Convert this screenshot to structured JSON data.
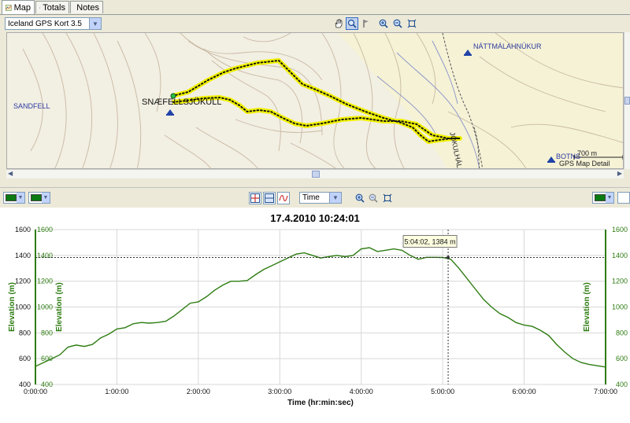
{
  "tabs": [
    {
      "label": "Map",
      "icon": "map-icon",
      "active": true
    },
    {
      "label": "Totals",
      "icon": "table-icon",
      "active": false
    },
    {
      "label": "Notes",
      "icon": "notes-icon",
      "active": false
    }
  ],
  "map_toolbar": {
    "map_select": "Iceland GPS Kort 3.5",
    "tools": [
      "hand-icon",
      "zoom-select-icon",
      "flag-icon",
      "zoom-in-icon",
      "zoom-out-icon",
      "zoom-fit-icon"
    ]
  },
  "map": {
    "labels": {
      "sandfell": "SANDFELL",
      "snaefellsjokull": "SNÆFELLSJÖKULL",
      "nattmalahnukur": "NÁTTMÁLAHNÚKUR",
      "botns": "BOTNS",
      "jokulhalsleid": "JÖKULHÁLSLEIÐ"
    },
    "scale": "700 m",
    "credit": "GPS Map Detail",
    "track_color": "#f0f000"
  },
  "chart_toolbar": {
    "left_color": "#0a7a12",
    "right_color": "#0a7a12",
    "x_select": "Time"
  },
  "chart_data": {
    "type": "line",
    "title": "17.4.2010 10:24:01",
    "xlabel": "Time (hr:min:sec)",
    "ylabel": "Elevation (m)",
    "xlim": [
      0,
      7
    ],
    "ylim": [
      400,
      1600
    ],
    "x_ticks": [
      "0:00:00",
      "1:00:00",
      "2:00:00",
      "3:00:00",
      "4:00:00",
      "5:00:00",
      "6:00:00",
      "7:00:00"
    ],
    "y_ticks": [
      "400",
      "600",
      "800",
      "1000",
      "1200",
      "1400",
      "1600"
    ],
    "series_color": "#2e7d12",
    "cursor": {
      "x": 5.067,
      "y": 1384,
      "label": "5:04:02, 1384 m"
    },
    "x": [
      0,
      0.1,
      0.2,
      0.3,
      0.4,
      0.5,
      0.6,
      0.7,
      0.8,
      0.9,
      1.0,
      1.1,
      1.2,
      1.3,
      1.4,
      1.5,
      1.6,
      1.7,
      1.8,
      1.9,
      2.0,
      2.1,
      2.2,
      2.3,
      2.4,
      2.5,
      2.6,
      2.7,
      2.8,
      2.9,
      3.0,
      3.1,
      3.2,
      3.3,
      3.4,
      3.5,
      3.6,
      3.7,
      3.8,
      3.9,
      4.0,
      4.1,
      4.2,
      4.3,
      4.4,
      4.5,
      4.6,
      4.7,
      4.8,
      4.9,
      5.0,
      5.1,
      5.2,
      5.3,
      5.4,
      5.5,
      5.6,
      5.7,
      5.8,
      5.9,
      6.0,
      6.1,
      6.2,
      6.3,
      6.4,
      6.5,
      6.6,
      6.7,
      6.8,
      6.9,
      7.0
    ],
    "y": [
      540,
      570,
      600,
      630,
      690,
      705,
      695,
      710,
      760,
      790,
      830,
      840,
      870,
      880,
      875,
      880,
      890,
      930,
      980,
      1030,
      1040,
      1080,
      1130,
      1170,
      1200,
      1200,
      1205,
      1250,
      1290,
      1320,
      1350,
      1380,
      1410,
      1420,
      1400,
      1380,
      1390,
      1400,
      1390,
      1400,
      1450,
      1460,
      1430,
      1440,
      1450,
      1440,
      1400,
      1370,
      1385,
      1385,
      1384,
      1370,
      1300,
      1220,
      1140,
      1060,
      1000,
      950,
      920,
      880,
      860,
      850,
      820,
      780,
      710,
      650,
      600,
      570,
      555,
      545,
      535
    ]
  }
}
